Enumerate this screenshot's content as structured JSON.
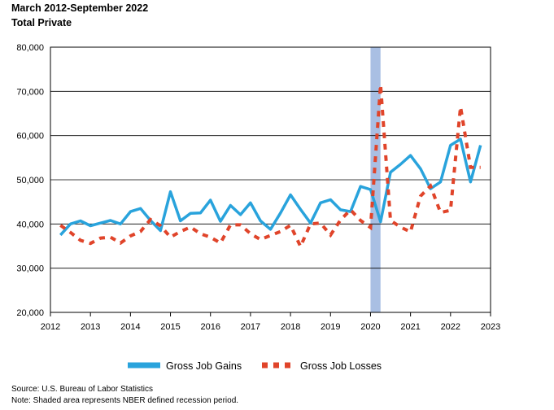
{
  "title": "March 2012-September 2022",
  "subtitle": "Total Private",
  "source": "Source: U.S. Bureau of Labor Statistics",
  "note": "Note: Shaded area represents NBER defined recession period.",
  "colors": {
    "gains": "#29a3dc",
    "losses": "#e0442a",
    "recession": "#a9bfe3",
    "grid": "#000000"
  },
  "chart_data": {
    "type": "line",
    "ylim": [
      20000,
      80000
    ],
    "xlim": [
      2012,
      2023
    ],
    "yticks": [
      "20,000",
      "30,000",
      "40,000",
      "50,000",
      "60,000",
      "70,000",
      "80,000"
    ],
    "ytick_values": [
      20000,
      30000,
      40000,
      50000,
      60000,
      70000,
      80000
    ],
    "xticks": [
      "2012",
      "2013",
      "2014",
      "2015",
      "2016",
      "2017",
      "2018",
      "2019",
      "2020",
      "2021",
      "2022",
      "2023"
    ],
    "xtick_values": [
      2012,
      2013,
      2014,
      2015,
      2016,
      2017,
      2018,
      2019,
      2020,
      2021,
      2022,
      2023
    ],
    "recession": [
      2020.0,
      2020.25
    ],
    "x": [
      2012.25,
      2012.5,
      2012.75,
      2013.0,
      2013.25,
      2013.5,
      2013.75,
      2014.0,
      2014.25,
      2014.5,
      2014.75,
      2015.0,
      2015.25,
      2015.5,
      2015.75,
      2016.0,
      2016.25,
      2016.5,
      2016.75,
      2017.0,
      2017.25,
      2017.5,
      2017.75,
      2018.0,
      2018.25,
      2018.5,
      2018.75,
      2019.0,
      2019.25,
      2019.5,
      2019.75,
      2020.0,
      2020.25,
      2020.5,
      2020.75,
      2021.0,
      2021.25,
      2021.5,
      2021.75,
      2022.0,
      2022.25,
      2022.5,
      2022.75
    ],
    "series": [
      {
        "name": "Gross Job Gains",
        "values": [
          37500,
          40000,
          40700,
          39600,
          40200,
          40800,
          40000,
          42800,
          43500,
          40800,
          38500,
          47300,
          40700,
          42400,
          42500,
          45400,
          40600,
          44200,
          42100,
          44800,
          40700,
          38800,
          42500,
          46600,
          43300,
          40200,
          44800,
          45500,
          43200,
          42800,
          48500,
          47800,
          40500,
          51700,
          53500,
          55500,
          52500,
          48000,
          49500,
          57800,
          59200,
          49500,
          57800
        ]
      },
      {
        "name": "Gross Job Losses",
        "values": [
          39700,
          38100,
          36300,
          35600,
          36800,
          37000,
          35700,
          37300,
          38300,
          41000,
          39600,
          37000,
          38300,
          39300,
          37800,
          37000,
          35700,
          39800,
          39800,
          37800,
          36500,
          37400,
          38300,
          39700,
          34900,
          40000,
          40200,
          37500,
          40900,
          43200,
          40800,
          39200,
          71500,
          40800,
          39300,
          38200,
          46300,
          48600,
          42600,
          43100,
          66500,
          52800,
          52800
        ]
      }
    ],
    "legend": [
      "Gross Job Gains",
      "Gross Job Losses"
    ],
    "legend_position": "bottom",
    "grid": "horizontal"
  }
}
